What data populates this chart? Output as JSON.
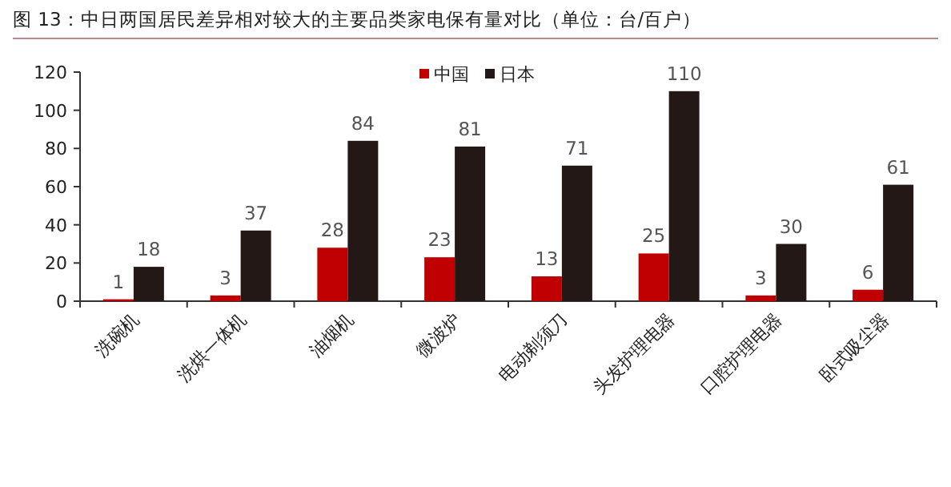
{
  "chart_data": {
    "type": "bar",
    "title": "图 13：中日两国居民差异相对较大的主要品类家电保有量对比（单位：台/百户）",
    "categories": [
      "洗碗机",
      "洗烘一体机",
      "油烟机",
      "微波炉",
      "电动剃须刀",
      "头发护理电器",
      "口腔护理电器",
      "卧式吸尘器"
    ],
    "series": [
      {
        "name": "中国",
        "color": "#c00000",
        "values": [
          1,
          3,
          28,
          23,
          13,
          25,
          3,
          6
        ]
      },
      {
        "name": "日本",
        "color": "#231815",
        "values": [
          18,
          37,
          84,
          81,
          71,
          110,
          30,
          61
        ]
      }
    ],
    "ylim": [
      0,
      120
    ],
    "yticks": [
      0,
      20,
      40,
      60,
      80,
      100,
      120
    ],
    "data_labels": true,
    "legend": "top",
    "grid": false
  }
}
